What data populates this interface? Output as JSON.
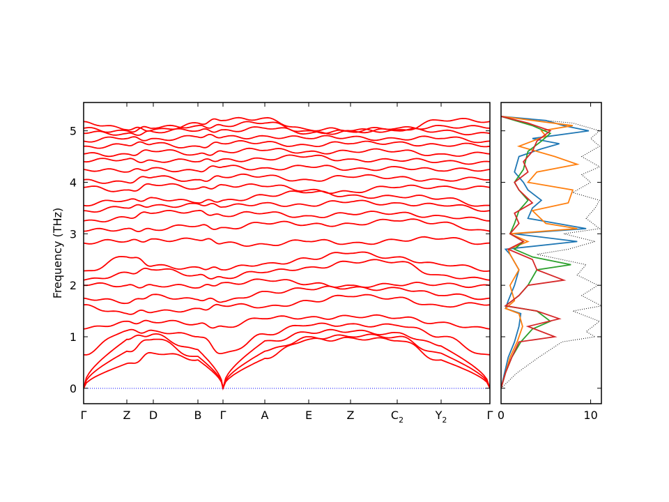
{
  "chart_data": [
    {
      "type": "line",
      "ylabel": "Frequency (THz)",
      "xlabel": "",
      "ylim": [
        -0.3,
        5.55
      ],
      "yticks": [
        "0",
        "1",
        "2",
        "3",
        "4",
        "5"
      ],
      "xticks": [
        "Γ",
        "Z",
        "D",
        "B",
        "Γ",
        "A",
        "E",
        "Z",
        "C",
        "Y",
        "Γ"
      ],
      "xtick_subscripts": [
        "",
        "",
        "",
        "",
        "",
        "",
        "",
        "",
        "2",
        "2",
        ""
      ],
      "zero_line_color": "#0000ff",
      "band_color": "#ff0000",
      "series": [
        {
          "values_at_ticks": [
            0,
            0.48,
            0.68,
            0.55,
            0,
            0.58,
            0.95,
            0.98,
            0.92,
            0.55,
            0
          ]
        },
        {
          "values_at_ticks": [
            0,
            0.72,
            0.95,
            0.62,
            0,
            0.72,
            1.0,
            1.0,
            1.0,
            0.68,
            0
          ]
        },
        {
          "values_at_ticks": [
            0,
            0.95,
            1.05,
            0.75,
            0,
            0.92,
            1.08,
            1.1,
            1.08,
            0.82,
            0
          ]
        },
        {
          "values_at_ticks": [
            0.65,
            1.12,
            1.12,
            1.0,
            0.68,
            1.05,
            1.22,
            1.25,
            1.22,
            1.0,
            0.65
          ]
        },
        {
          "values_at_ticks": [
            1.15,
            1.3,
            1.28,
            1.25,
            1.2,
            1.35,
            1.38,
            1.4,
            1.36,
            1.28,
            1.15
          ]
        },
        {
          "values_at_ticks": [
            1.62,
            1.45,
            1.48,
            1.55,
            1.6,
            1.58,
            1.7,
            1.78,
            1.76,
            1.6,
            1.62
          ]
        },
        {
          "values_at_ticks": [
            1.75,
            1.65,
            1.82,
            1.72,
            1.68,
            1.88,
            1.92,
            1.95,
            1.95,
            1.8,
            1.75
          ]
        },
        {
          "values_at_ticks": [
            2.0,
            2.0,
            2.0,
            1.95,
            2.05,
            2.1,
            2.02,
            2.0,
            2.0,
            2.02,
            2.0
          ]
        },
        {
          "values_at_ticks": [
            2.1,
            2.25,
            2.3,
            2.2,
            2.15,
            2.25,
            2.35,
            2.45,
            2.45,
            2.2,
            2.1
          ]
        },
        {
          "values_at_ticks": [
            2.28,
            2.55,
            2.38,
            2.35,
            2.3,
            2.42,
            2.52,
            2.62,
            2.55,
            2.4,
            2.28
          ]
        },
        {
          "values_at_ticks": [
            2.82,
            2.85,
            2.9,
            2.88,
            2.82,
            2.8,
            2.85,
            2.82,
            2.88,
            2.9,
            2.82
          ]
        },
        {
          "values_at_ticks": [
            3.05,
            3.1,
            3.08,
            3.15,
            3.12,
            3.2,
            3.18,
            3.2,
            3.25,
            3.22,
            3.05
          ]
        },
        {
          "values_at_ticks": [
            3.25,
            3.32,
            3.4,
            3.45,
            3.35,
            3.4,
            3.35,
            3.38,
            3.4,
            3.35,
            3.25
          ]
        },
        {
          "values_at_ticks": [
            3.45,
            3.5,
            3.55,
            3.58,
            3.52,
            3.6,
            3.55,
            3.62,
            3.6,
            3.55,
            3.45
          ]
        },
        {
          "values_at_ticks": [
            3.55,
            3.65,
            3.7,
            3.6,
            3.65,
            3.75,
            3.8,
            3.75,
            3.72,
            3.68,
            3.55
          ]
        },
        {
          "values_at_ticks": [
            3.9,
            3.85,
            3.95,
            3.88,
            3.95,
            3.92,
            3.85,
            3.82,
            3.9,
            3.92,
            3.9
          ]
        },
        {
          "values_at_ticks": [
            4.05,
            4.0,
            4.1,
            4.05,
            4.1,
            4.12,
            4.05,
            4.1,
            4.1,
            4.05,
            4.05
          ]
        },
        {
          "values_at_ticks": [
            4.25,
            4.2,
            4.28,
            4.22,
            4.3,
            4.28,
            4.3,
            4.25,
            4.3,
            4.22,
            4.25
          ]
        },
        {
          "values_at_ticks": [
            4.4,
            4.45,
            4.42,
            4.4,
            4.45,
            4.45,
            4.5,
            4.45,
            4.42,
            4.4,
            4.4
          ]
        },
        {
          "values_at_ticks": [
            4.55,
            4.55,
            4.6,
            4.55,
            4.6,
            4.62,
            4.6,
            4.6,
            4.6,
            4.55,
            4.55
          ]
        },
        {
          "values_at_ticks": [
            4.7,
            4.72,
            4.75,
            4.7,
            4.75,
            4.78,
            4.72,
            4.75,
            4.78,
            4.72,
            4.7
          ]
        },
        {
          "values_at_ticks": [
            4.8,
            4.85,
            4.85,
            4.88,
            4.88,
            4.9,
            4.85,
            4.88,
            4.85,
            4.85,
            4.8
          ]
        },
        {
          "values_at_ticks": [
            4.95,
            4.95,
            4.98,
            5.0,
            5.02,
            5.05,
            4.95,
            5.0,
            5.0,
            5.0,
            4.95
          ]
        },
        {
          "values_at_ticks": [
            5.05,
            5.0,
            5.05,
            5.1,
            5.1,
            5.15,
            5.0,
            4.98,
            5.05,
            5.1,
            5.05
          ]
        },
        {
          "values_at_ticks": [
            5.18,
            5.02,
            5.02,
            5.15,
            5.2,
            5.25,
            5.02,
            5.0,
            5.02,
            5.2,
            5.18
          ]
        }
      ]
    },
    {
      "type": "line",
      "xlabel": "",
      "xlim": [
        0,
        11.2
      ],
      "xticks": [
        "0",
        "10"
      ],
      "total_dos": {
        "color": "#000000",
        "style": "dotted",
        "freq": [
          0,
          0.3,
          0.6,
          0.9,
          1.0,
          1.1,
          1.3,
          1.5,
          1.6,
          1.8,
          2.0,
          2.2,
          2.4,
          2.6,
          2.7,
          2.85,
          3.0,
          3.1,
          3.3,
          3.5,
          3.65,
          3.8,
          4.0,
          4.15,
          4.3,
          4.5,
          4.7,
          4.85,
          5.0,
          5.15,
          5.28
        ],
        "dos": [
          0,
          1.8,
          4.2,
          6.8,
          10.5,
          9.5,
          11.0,
          8.0,
          11.2,
          9.0,
          10.8,
          8.5,
          9.5,
          4.0,
          7.5,
          10.5,
          7.0,
          11.0,
          9.5,
          10.5,
          11.0,
          8.0,
          10.0,
          9.0,
          11.0,
          9.0,
          11.0,
          10.0,
          11.0,
          8.0,
          0
        ]
      },
      "series": [
        {
          "color": "#1f77b4",
          "freq": [
            0,
            0.3,
            0.6,
            0.9,
            1.2,
            1.45,
            1.55,
            1.7,
            2.0,
            2.3,
            2.6,
            2.7,
            2.85,
            3.0,
            3.1,
            3.3,
            3.5,
            3.65,
            3.85,
            4.0,
            4.2,
            4.5,
            4.65,
            4.75,
            4.85,
            5.0,
            5.1,
            5.2,
            5.28
          ],
          "dos": [
            0,
            0.4,
            0.8,
            1.5,
            2.0,
            2.2,
            0.5,
            0.8,
            1.5,
            2.0,
            1.0,
            0.5,
            8.5,
            1.5,
            9.5,
            3.0,
            3.5,
            4.5,
            3.0,
            2.5,
            1.5,
            2.0,
            4.5,
            6.5,
            3.5,
            9.8,
            7.0,
            5.0,
            0
          ]
        },
        {
          "color": "#ff7f0e",
          "freq": [
            0,
            0.3,
            0.6,
            0.9,
            1.2,
            1.45,
            1.55,
            1.7,
            2.0,
            2.3,
            2.6,
            2.7,
            2.85,
            3.0,
            3.1,
            3.2,
            3.45,
            3.6,
            3.85,
            4.0,
            4.2,
            4.35,
            4.5,
            4.7,
            4.9,
            5.0,
            5.1,
            5.28
          ],
          "dos": [
            0,
            0.5,
            1.0,
            1.8,
            2.4,
            2.0,
            0.5,
            1.5,
            1.0,
            2.0,
            1.0,
            0.8,
            3.0,
            1.0,
            8.5,
            5.0,
            3.5,
            7.5,
            8.0,
            3.0,
            4.0,
            8.5,
            6.0,
            2.0,
            5.0,
            4.5,
            8.0,
            0
          ]
        },
        {
          "color": "#2ca02c",
          "freq": [
            0,
            0.3,
            0.6,
            0.9,
            1.15,
            1.3,
            1.5,
            1.6,
            1.8,
            2.0,
            2.3,
            2.4,
            2.55,
            2.7,
            2.85,
            3.0,
            3.2,
            3.45,
            3.65,
            3.85,
            4.0,
            4.25,
            4.6,
            4.8,
            4.95,
            5.1,
            5.28
          ],
          "dos": [
            0,
            0.5,
            1.2,
            2.2,
            3.5,
            5.5,
            4.0,
            0.5,
            2.0,
            3.0,
            4.0,
            7.8,
            3.5,
            1.5,
            2.5,
            1.0,
            1.5,
            2.0,
            3.0,
            2.0,
            1.5,
            2.5,
            3.0,
            4.5,
            5.5,
            3.5,
            0
          ]
        },
        {
          "color": "#d62728",
          "freq": [
            0,
            0.3,
            0.6,
            0.9,
            1.0,
            1.2,
            1.35,
            1.5,
            1.6,
            1.8,
            2.0,
            2.1,
            2.3,
            2.5,
            2.7,
            2.85,
            3.0,
            3.2,
            3.4,
            3.6,
            3.85,
            4.0,
            4.2,
            4.4,
            4.6,
            4.8,
            5.0,
            5.15,
            5.28
          ],
          "dos": [
            0,
            0.5,
            1.2,
            2.0,
            6.0,
            3.0,
            6.5,
            4.0,
            0.5,
            2.0,
            3.0,
            7.0,
            4.0,
            3.5,
            0.8,
            2.5,
            1.0,
            2.0,
            1.5,
            3.5,
            2.0,
            1.5,
            3.0,
            2.5,
            3.5,
            4.0,
            5.5,
            3.0,
            0
          ]
        }
      ]
    }
  ]
}
